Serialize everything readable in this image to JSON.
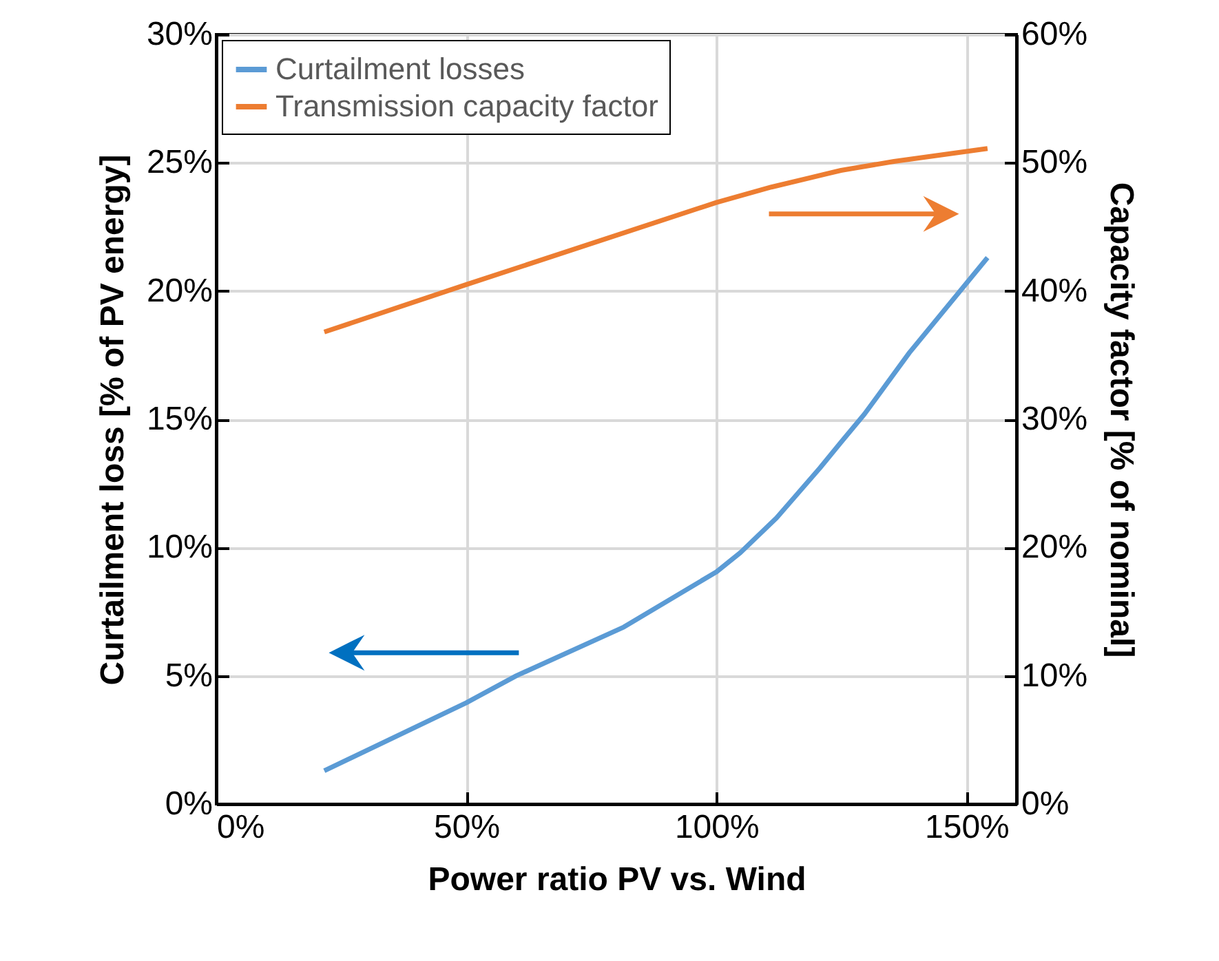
{
  "chart_data": {
    "type": "line",
    "xlabel": "Power ratio PV vs. Wind",
    "ylabel": "Curtailment loss [% of PV energy]",
    "y2label": "Capacity factor [% of nominal]",
    "xlim": [
      0,
      160
    ],
    "xticks": [
      {
        "value": 0,
        "label": "0%"
      },
      {
        "value": 50,
        "label": "50%"
      },
      {
        "value": 100,
        "label": "100%"
      },
      {
        "value": 150,
        "label": "150%"
      }
    ],
    "ylim": [
      0,
      30
    ],
    "yticks": [
      {
        "value": 0,
        "label": "0%"
      },
      {
        "value": 5,
        "label": "5%"
      },
      {
        "value": 10,
        "label": "10%"
      },
      {
        "value": 15,
        "label": "15%"
      },
      {
        "value": 20,
        "label": "20%"
      },
      {
        "value": 25,
        "label": "25%"
      },
      {
        "value": 30,
        "label": "30%"
      }
    ],
    "y2lim": [
      0,
      60
    ],
    "y2ticks": [
      {
        "value": 0,
        "label": "0%"
      },
      {
        "value": 10,
        "label": "10%"
      },
      {
        "value": 20,
        "label": "20%"
      },
      {
        "value": 30,
        "label": "30%"
      },
      {
        "value": 40,
        "label": "40%"
      },
      {
        "value": 50,
        "label": "50%"
      },
      {
        "value": 60,
        "label": "60%"
      }
    ],
    "grid": true,
    "legend": "top left",
    "marker": "none",
    "line_style": "solid",
    "series": [
      {
        "name": "Curtailment losses",
        "color": "#5b9bd5",
        "x": [
          21.6,
          50,
          60,
          81.5,
          100,
          104.8,
          112,
          120.7,
          124.9,
          129.6,
          138.6,
          154.2
        ],
        "values": [
          1.3,
          3.95,
          5,
          6.9,
          9.05,
          9.8,
          11.15,
          13.1,
          14.1,
          15.2,
          17.6,
          21.3
        ]
      },
      {
        "name": "Transmission capacity factor",
        "color": "#ed7d31",
        "axis": "y2",
        "x": [
          21.6,
          50,
          100,
          111,
          124.9,
          135.5,
          154.2
        ],
        "values": [
          36.8,
          40.5,
          46.9,
          48.1,
          49.4,
          50.1,
          51.1
        ]
      }
    ]
  }
}
